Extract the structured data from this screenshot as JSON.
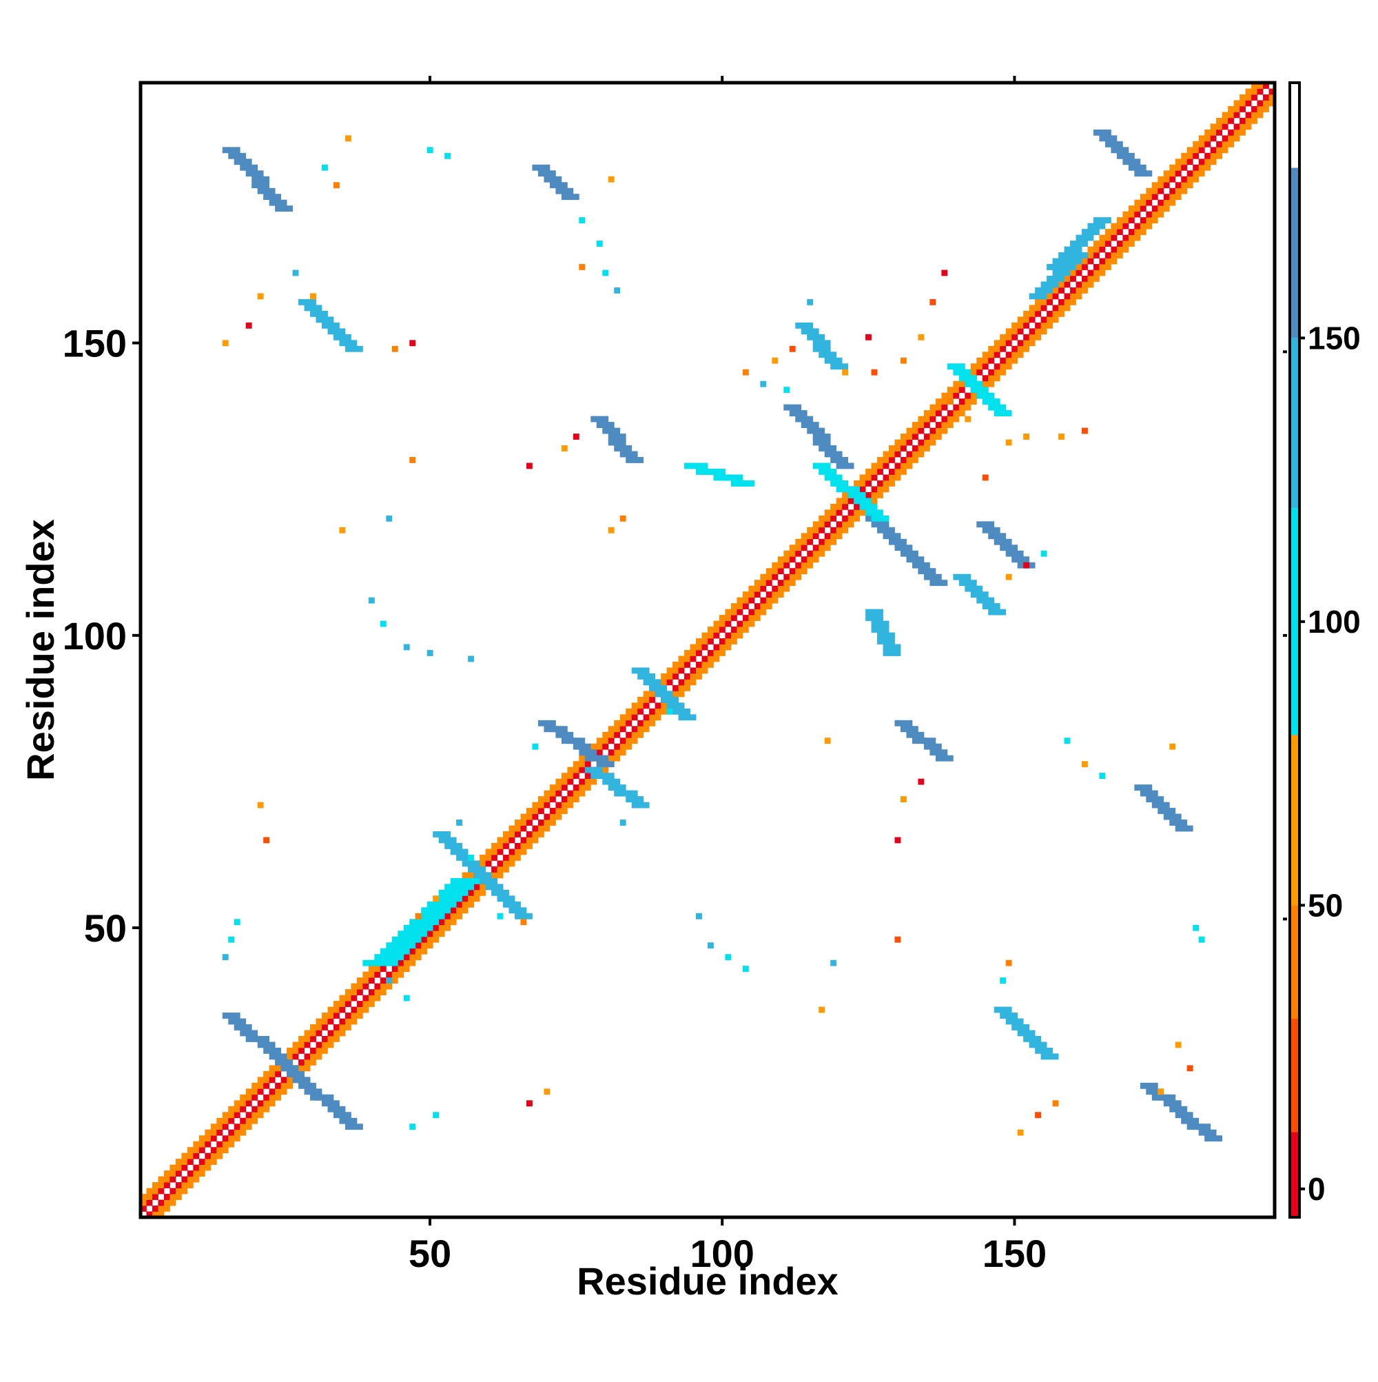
{
  "chart_data": {
    "type": "heatmap",
    "title": "",
    "xlabel": "Residue index",
    "ylabel": "Residue index",
    "xlim": [
      1,
      194
    ],
    "ylim": [
      1,
      194
    ],
    "x_ticks": [
      50,
      100,
      150
    ],
    "y_ticks": [
      50,
      100,
      150
    ],
    "grid": false,
    "legend": "colorbar-right",
    "colorbar": {
      "range": [
        -5,
        195
      ],
      "ticks": [
        0,
        50,
        100,
        150
      ],
      "bands": [
        {
          "from": -5,
          "to": 10,
          "color": "#e6001a"
        },
        {
          "from": 10,
          "to": 30,
          "color": "#ff4d00"
        },
        {
          "from": 30,
          "to": 50,
          "color": "#ff7f00"
        },
        {
          "from": 50,
          "to": 80,
          "color": "#ff9a00"
        },
        {
          "from": 80,
          "to": 120,
          "color": "#00e1ee"
        },
        {
          "from": 120,
          "to": 150,
          "color": "#31b4de"
        },
        {
          "from": 150,
          "to": 180,
          "color": "#4d8bc1"
        },
        {
          "from": 180,
          "to": 195,
          "color": "#ffffff"
        }
      ]
    },
    "diagonal": {
      "from": 1,
      "to": 194,
      "near_color": "#e6001a",
      "mid_color": "#ff8c00"
    },
    "contact_segments": [
      {
        "x1": 16,
        "y1": 35,
        "x2": 26,
        "y2": 26,
        "w": 3,
        "color": "#4d8bc1"
      },
      {
        "x1": 26,
        "y1": 26,
        "x2": 37,
        "y2": 16,
        "w": 3,
        "color": "#4d8bc1"
      },
      {
        "x1": 42,
        "y1": 44,
        "x2": 56,
        "y2": 58,
        "w": 4,
        "color": "#00e1ee"
      },
      {
        "x1": 52,
        "y1": 66,
        "x2": 66,
        "y2": 52,
        "w": 2,
        "color": "#31b4de"
      },
      {
        "x1": 70,
        "y1": 85,
        "x2": 80,
        "y2": 78,
        "w": 3,
        "color": "#4d8bc1"
      },
      {
        "x1": 78,
        "y1": 77,
        "x2": 86,
        "y2": 71,
        "w": 3,
        "color": "#31b4de"
      },
      {
        "x1": 86,
        "y1": 94,
        "x2": 94,
        "y2": 86,
        "w": 3,
        "color": "#31b4de"
      },
      {
        "x1": 16,
        "y1": 183,
        "x2": 25,
        "y2": 173,
        "w": 3,
        "color": "#4d8bc1"
      },
      {
        "x1": 69,
        "y1": 180,
        "x2": 74,
        "y2": 175,
        "w": 3,
        "color": "#4d8bc1"
      },
      {
        "x1": 29,
        "y1": 157,
        "x2": 37,
        "y2": 149,
        "w": 3,
        "color": "#31b4de"
      },
      {
        "x1": 79,
        "y1": 137,
        "x2": 85,
        "y2": 130,
        "w": 3,
        "color": "#4d8bc1"
      },
      {
        "x1": 95,
        "y1": 129,
        "x2": 104,
        "y2": 126,
        "w": 2,
        "color": "#00e1ee"
      },
      {
        "x1": 114,
        "y1": 153,
        "x2": 120,
        "y2": 146,
        "w": 3,
        "color": "#31b4de"
      },
      {
        "x1": 112,
        "y1": 139,
        "x2": 121,
        "y2": 129,
        "w": 3,
        "color": "#4d8bc1"
      },
      {
        "x1": 126,
        "y1": 120,
        "x2": 137,
        "y2": 109,
        "w": 3,
        "color": "#4d8bc1"
      },
      {
        "x1": 117,
        "y1": 129,
        "x2": 127,
        "y2": 120,
        "w": 3,
        "color": "#00e1ee"
      },
      {
        "x1": 140,
        "y1": 146,
        "x2": 148,
        "y2": 138,
        "w": 3,
        "color": "#00e1ee"
      },
      {
        "x1": 145,
        "y1": 119,
        "x2": 152,
        "y2": 112,
        "w": 3,
        "color": "#4d8bc1"
      },
      {
        "x1": 141,
        "y1": 110,
        "x2": 147,
        "y2": 104,
        "w": 2,
        "color": "#31b4de"
      },
      {
        "x1": 126,
        "y1": 104,
        "x2": 129,
        "y2": 97,
        "w": 2,
        "color": "#31b4de"
      },
      {
        "x1": 131,
        "y1": 85,
        "x2": 138,
        "y2": 79,
        "w": 3,
        "color": "#4d8bc1"
      },
      {
        "x1": 172,
        "y1": 74,
        "x2": 179,
        "y2": 67,
        "w": 3,
        "color": "#4d8bc1"
      },
      {
        "x1": 148,
        "y1": 36,
        "x2": 156,
        "y2": 28,
        "w": 3,
        "color": "#31b4de"
      },
      {
        "x1": 173,
        "y1": 23,
        "x2": 184,
        "y2": 14,
        "w": 3,
        "color": "#4d8bc1"
      },
      {
        "x1": 165,
        "y1": 186,
        "x2": 172,
        "y2": 179,
        "w": 3,
        "color": "#4d8bc1"
      },
      {
        "x1": 157,
        "y1": 163,
        "x2": 165,
        "y2": 171,
        "w": 3,
        "color": "#31b4de"
      },
      {
        "x1": 154,
        "y1": 158,
        "x2": 161,
        "y2": 165,
        "w": 3,
        "color": "#31b4de"
      }
    ],
    "contact_cells": [
      [
        55,
        68,
        "#31b4de"
      ],
      [
        57,
        62,
        "#00e1ee"
      ],
      [
        60,
        58,
        "#31b4de"
      ],
      [
        62,
        52,
        "#00e1ee"
      ],
      [
        66,
        51,
        "#ff7f00"
      ],
      [
        39,
        44,
        "#00e1ee"
      ],
      [
        43,
        41,
        "#31b4de"
      ],
      [
        46,
        38,
        "#00e1ee"
      ],
      [
        48,
        52,
        "#ff7f00"
      ],
      [
        51,
        55,
        "#ff9a00"
      ],
      [
        22,
        65,
        "#ff4d00"
      ],
      [
        21,
        71,
        "#ff9a00"
      ],
      [
        17,
        51,
        "#00e1ee"
      ],
      [
        16,
        48,
        "#00e1ee"
      ],
      [
        15,
        45,
        "#31b4de"
      ],
      [
        68,
        81,
        "#00e1ee"
      ],
      [
        83,
        68,
        "#31b4de"
      ],
      [
        91,
        87,
        "#00e1ee"
      ],
      [
        88,
        92,
        "#31b4de"
      ],
      [
        96,
        52,
        "#31b4de"
      ],
      [
        98,
        47,
        "#31b4de"
      ],
      [
        101,
        45,
        "#00e1ee"
      ],
      [
        104,
        43,
        "#00e1ee"
      ],
      [
        119,
        44,
        "#31b4de"
      ],
      [
        117,
        36,
        "#ff9a00"
      ],
      [
        130,
        48,
        "#ff4d00"
      ],
      [
        131,
        72,
        "#ff9a00"
      ],
      [
        134,
        75,
        "#e6001a"
      ],
      [
        130,
        65,
        "#e6001a"
      ],
      [
        118,
        82,
        "#ff9a00"
      ],
      [
        159,
        82,
        "#00e1ee"
      ],
      [
        162,
        78,
        "#ff9a00"
      ],
      [
        165,
        76,
        "#00e1ee"
      ],
      [
        177,
        81,
        "#ff9a00"
      ],
      [
        181,
        50,
        "#00e1ee"
      ],
      [
        182,
        48,
        "#00e1ee"
      ],
      [
        178,
        30,
        "#ff9a00"
      ],
      [
        180,
        26,
        "#ff4d00"
      ],
      [
        175,
        22,
        "#ff9a00"
      ],
      [
        149,
        44,
        "#ff7f00"
      ],
      [
        148,
        41,
        "#00e1ee"
      ],
      [
        151,
        15,
        "#ff9a00"
      ],
      [
        154,
        18,
        "#ff4d00"
      ],
      [
        157,
        20,
        "#ff7f00"
      ],
      [
        67,
        20,
        "#e6001a"
      ],
      [
        70,
        22,
        "#ff9a00"
      ],
      [
        47,
        16,
        "#00e1ee"
      ],
      [
        51,
        18,
        "#00e1ee"
      ],
      [
        40,
        106,
        "#31b4de"
      ],
      [
        42,
        102,
        "#00e1ee"
      ],
      [
        46,
        98,
        "#31b4de"
      ],
      [
        50,
        97,
        "#31b4de"
      ],
      [
        57,
        96,
        "#31b4de"
      ],
      [
        35,
        118,
        "#ff9a00"
      ],
      [
        43,
        120,
        "#31b4de"
      ],
      [
        81,
        118,
        "#ff9a00"
      ],
      [
        83,
        120,
        "#ff7f00"
      ],
      [
        47,
        130,
        "#ff7f00"
      ],
      [
        67,
        129,
        "#e6001a"
      ],
      [
        73,
        132,
        "#ff9a00"
      ],
      [
        75,
        134,
        "#e6001a"
      ],
      [
        15,
        150,
        "#ff9a00"
      ],
      [
        19,
        153,
        "#e6001a"
      ],
      [
        21,
        158,
        "#ff9a00"
      ],
      [
        44,
        149,
        "#ff7f00"
      ],
      [
        47,
        150,
        "#e6001a"
      ],
      [
        27,
        162,
        "#31b4de"
      ],
      [
        30,
        158,
        "#ff9a00"
      ],
      [
        34,
        177,
        "#ff7f00"
      ],
      [
        32,
        180,
        "#00e1ee"
      ],
      [
        36,
        185,
        "#ff9a00"
      ],
      [
        50,
        183,
        "#00e1ee"
      ],
      [
        53,
        182,
        "#00e1ee"
      ],
      [
        81,
        178,
        "#ff9a00"
      ],
      [
        76,
        171,
        "#00e1ee"
      ],
      [
        79,
        167,
        "#00e1ee"
      ],
      [
        76,
        163,
        "#ff7f00"
      ],
      [
        80,
        162,
        "#00e1ee"
      ],
      [
        82,
        159,
        "#31b4de"
      ],
      [
        104,
        145,
        "#ff7f00"
      ],
      [
        107,
        143,
        "#31b4de"
      ],
      [
        111,
        142,
        "#00e1ee"
      ],
      [
        109,
        147,
        "#ff9a00"
      ],
      [
        121,
        145,
        "#ff9a00"
      ],
      [
        126,
        145,
        "#ff4d00"
      ],
      [
        131,
        147,
        "#ff7f00"
      ],
      [
        134,
        151,
        "#ff9a00"
      ],
      [
        136,
        157,
        "#ff4d00"
      ],
      [
        138,
        162,
        "#e6001a"
      ],
      [
        149,
        133,
        "#ff9a00"
      ],
      [
        152,
        134,
        "#ff9a00"
      ],
      [
        158,
        134,
        "#ff9a00"
      ],
      [
        162,
        135,
        "#ff4d00"
      ],
      [
        145,
        127,
        "#ff4d00"
      ],
      [
        149,
        110,
        "#ff9a00"
      ],
      [
        152,
        112,
        "#e6001a"
      ],
      [
        155,
        114,
        "#00e1ee"
      ],
      [
        115,
        157,
        "#31b4de"
      ],
      [
        112,
        149,
        "#ff4d00"
      ],
      [
        125,
        151,
        "#e6001a"
      ],
      [
        142,
        137,
        "#ff9a00"
      ],
      [
        139,
        140,
        "#ff7f00"
      ]
    ]
  }
}
